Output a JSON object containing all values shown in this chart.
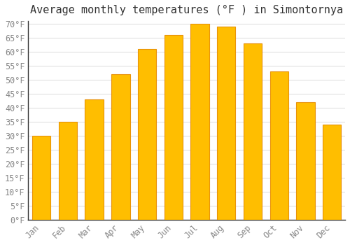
{
  "title": "Average monthly temperatures (°F ) in Simontornya",
  "months": [
    "Jan",
    "Feb",
    "Mar",
    "Apr",
    "May",
    "Jun",
    "Jul",
    "Aug",
    "Sep",
    "Oct",
    "Nov",
    "Dec"
  ],
  "values": [
    30,
    35,
    43,
    52,
    61,
    66,
    70,
    69,
    63,
    53,
    42,
    34
  ],
  "bar_color": "#FFBE00",
  "bar_edge_color": "#E8930A",
  "background_color": "#FFFFFF",
  "plot_bg_color": "#FFFFFF",
  "grid_color": "#E0E0E0",
  "text_color": "#888888",
  "title_color": "#333333",
  "spine_color": "#333333",
  "ylim": [
    0,
    71
  ],
  "ytick_min": 0,
  "ytick_max": 70,
  "ytick_step": 5,
  "title_fontsize": 11,
  "tick_fontsize": 8.5,
  "font_family": "monospace"
}
